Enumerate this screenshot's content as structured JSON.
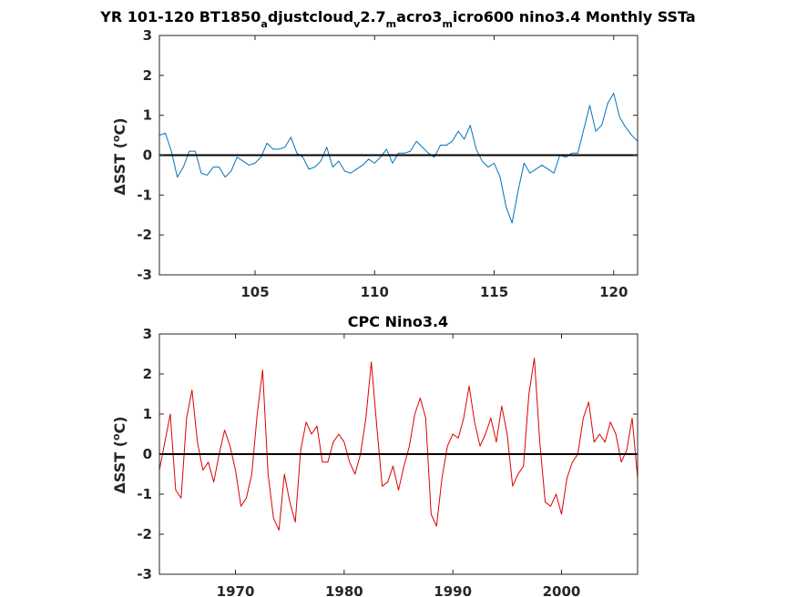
{
  "chart_data": [
    {
      "type": "line",
      "title": {
        "t1": "YR 101-120 BT1850",
        "s1": "a",
        "t2": "djustcloud",
        "s2": "v",
        "t3": "2.7",
        "s3": "m",
        "t4": "acro3",
        "s4": "m",
        "t5": "icro600 nino3.4 Monthly SSTa"
      },
      "ylabel": {
        "main": "ΔSST (",
        "sup": "o",
        "unit": "C)"
      },
      "xlim": [
        101,
        121
      ],
      "ylim": [
        -3,
        3
      ],
      "xticks": [
        105,
        110,
        115,
        120
      ],
      "yticks": [
        3,
        2,
        1,
        0,
        -1,
        -2,
        -3
      ],
      "grid": false,
      "zero_line": true,
      "series": [
        {
          "color": "#0072BD",
          "x": [
            101.0,
            101.25,
            101.5,
            101.75,
            102.0,
            102.25,
            102.5,
            102.75,
            103.0,
            103.25,
            103.5,
            103.75,
            104.0,
            104.25,
            104.5,
            104.75,
            105.0,
            105.25,
            105.5,
            105.75,
            106.0,
            106.25,
            106.5,
            106.75,
            107.0,
            107.25,
            107.5,
            107.75,
            108.0,
            108.25,
            108.5,
            108.75,
            109.0,
            109.25,
            109.5,
            109.75,
            110.0,
            110.25,
            110.5,
            110.75,
            111.0,
            111.25,
            111.5,
            111.75,
            112.0,
            112.25,
            112.5,
            112.75,
            113.0,
            113.25,
            113.5,
            113.75,
            114.0,
            114.25,
            114.5,
            114.75,
            115.0,
            115.25,
            115.5,
            115.75,
            116.0,
            116.25,
            116.5,
            116.75,
            117.0,
            117.25,
            117.5,
            117.75,
            118.0,
            118.25,
            118.5,
            118.75,
            119.0,
            119.25,
            119.5,
            119.75,
            120.0,
            120.25,
            120.5,
            120.75,
            121.0
          ],
          "y": [
            0.5,
            0.55,
            0.1,
            -0.55,
            -0.3,
            0.1,
            0.1,
            -0.45,
            -0.5,
            -0.3,
            -0.3,
            -0.55,
            -0.4,
            -0.05,
            -0.15,
            -0.25,
            -0.2,
            -0.05,
            0.3,
            0.15,
            0.15,
            0.2,
            0.45,
            0.05,
            -0.05,
            -0.35,
            -0.3,
            -0.15,
            0.2,
            -0.3,
            -0.15,
            -0.4,
            -0.45,
            -0.35,
            -0.25,
            -0.1,
            -0.2,
            -0.05,
            0.15,
            -0.2,
            0.05,
            0.05,
            0.1,
            0.35,
            0.2,
            0.05,
            -0.05,
            0.25,
            0.25,
            0.35,
            0.6,
            0.4,
            0.75,
            0.15,
            -0.15,
            -0.3,
            -0.2,
            -0.55,
            -1.3,
            -1.7,
            -0.9,
            -0.2,
            -0.45,
            -0.35,
            -0.25,
            -0.35,
            -0.45,
            0.0,
            -0.05,
            0.05,
            0.05,
            0.65,
            1.25,
            0.6,
            0.75,
            1.3,
            1.55,
            0.95,
            0.7,
            0.5,
            0.35
          ]
        }
      ]
    },
    {
      "type": "line",
      "title": "CPC Nino3.4",
      "ylabel": {
        "main": "ΔSST (",
        "sup": "o",
        "unit": "C)"
      },
      "xlim": [
        1963,
        2007
      ],
      "ylim": [
        -3,
        3
      ],
      "xticks": [
        1970,
        1980,
        1990,
        2000
      ],
      "yticks": [
        3,
        2,
        1,
        0,
        -1,
        -2,
        -3
      ],
      "grid": false,
      "zero_line": true,
      "series": [
        {
          "color": "#DD0000",
          "x": [
            1963.0,
            1963.5,
            1964.0,
            1964.5,
            1965.0,
            1965.5,
            1966.0,
            1966.5,
            1967.0,
            1967.5,
            1968.0,
            1968.5,
            1969.0,
            1969.5,
            1970.0,
            1970.5,
            1971.0,
            1971.5,
            1972.0,
            1972.5,
            1973.0,
            1973.5,
            1974.0,
            1974.5,
            1975.0,
            1975.5,
            1976.0,
            1976.5,
            1977.0,
            1977.5,
            1978.0,
            1978.5,
            1979.0,
            1979.5,
            1980.0,
            1980.5,
            1981.0,
            1981.5,
            1982.0,
            1982.5,
            1983.0,
            1983.5,
            1984.0,
            1984.5,
            1985.0,
            1985.5,
            1986.0,
            1986.5,
            1987.0,
            1987.5,
            1988.0,
            1988.5,
            1989.0,
            1989.5,
            1990.0,
            1990.5,
            1991.0,
            1991.5,
            1992.0,
            1992.5,
            1993.0,
            1993.5,
            1994.0,
            1994.5,
            1995.0,
            1995.5,
            1996.0,
            1996.5,
            1997.0,
            1997.5,
            1998.0,
            1998.5,
            1999.0,
            1999.5,
            2000.0,
            2000.5,
            2001.0,
            2001.5,
            2002.0,
            2002.5,
            2003.0,
            2003.5,
            2004.0,
            2004.5,
            2005.0,
            2005.5,
            2006.0,
            2006.5,
            2007.0
          ],
          "y": [
            -0.4,
            0.3,
            1.0,
            -0.9,
            -1.1,
            0.9,
            1.6,
            0.3,
            -0.4,
            -0.2,
            -0.7,
            0.0,
            0.6,
            0.2,
            -0.4,
            -1.3,
            -1.1,
            -0.5,
            1.0,
            2.1,
            -0.5,
            -1.6,
            -1.9,
            -0.5,
            -1.2,
            -1.7,
            0.1,
            0.8,
            0.5,
            0.7,
            -0.2,
            -0.2,
            0.3,
            0.5,
            0.3,
            -0.2,
            -0.5,
            0.0,
            0.9,
            2.3,
            0.7,
            -0.8,
            -0.7,
            -0.3,
            -0.9,
            -0.3,
            0.2,
            1.0,
            1.4,
            0.9,
            -1.5,
            -1.8,
            -0.6,
            0.2,
            0.5,
            0.4,
            0.9,
            1.7,
            0.8,
            0.2,
            0.5,
            0.9,
            0.3,
            1.2,
            0.5,
            -0.8,
            -0.5,
            -0.3,
            1.5,
            2.4,
            0.3,
            -1.2,
            -1.3,
            -1.0,
            -1.5,
            -0.6,
            -0.2,
            0.0,
            0.9,
            1.3,
            0.3,
            0.5,
            0.3,
            0.8,
            0.5,
            -0.2,
            0.1,
            0.9,
            -0.6
          ]
        }
      ]
    }
  ]
}
